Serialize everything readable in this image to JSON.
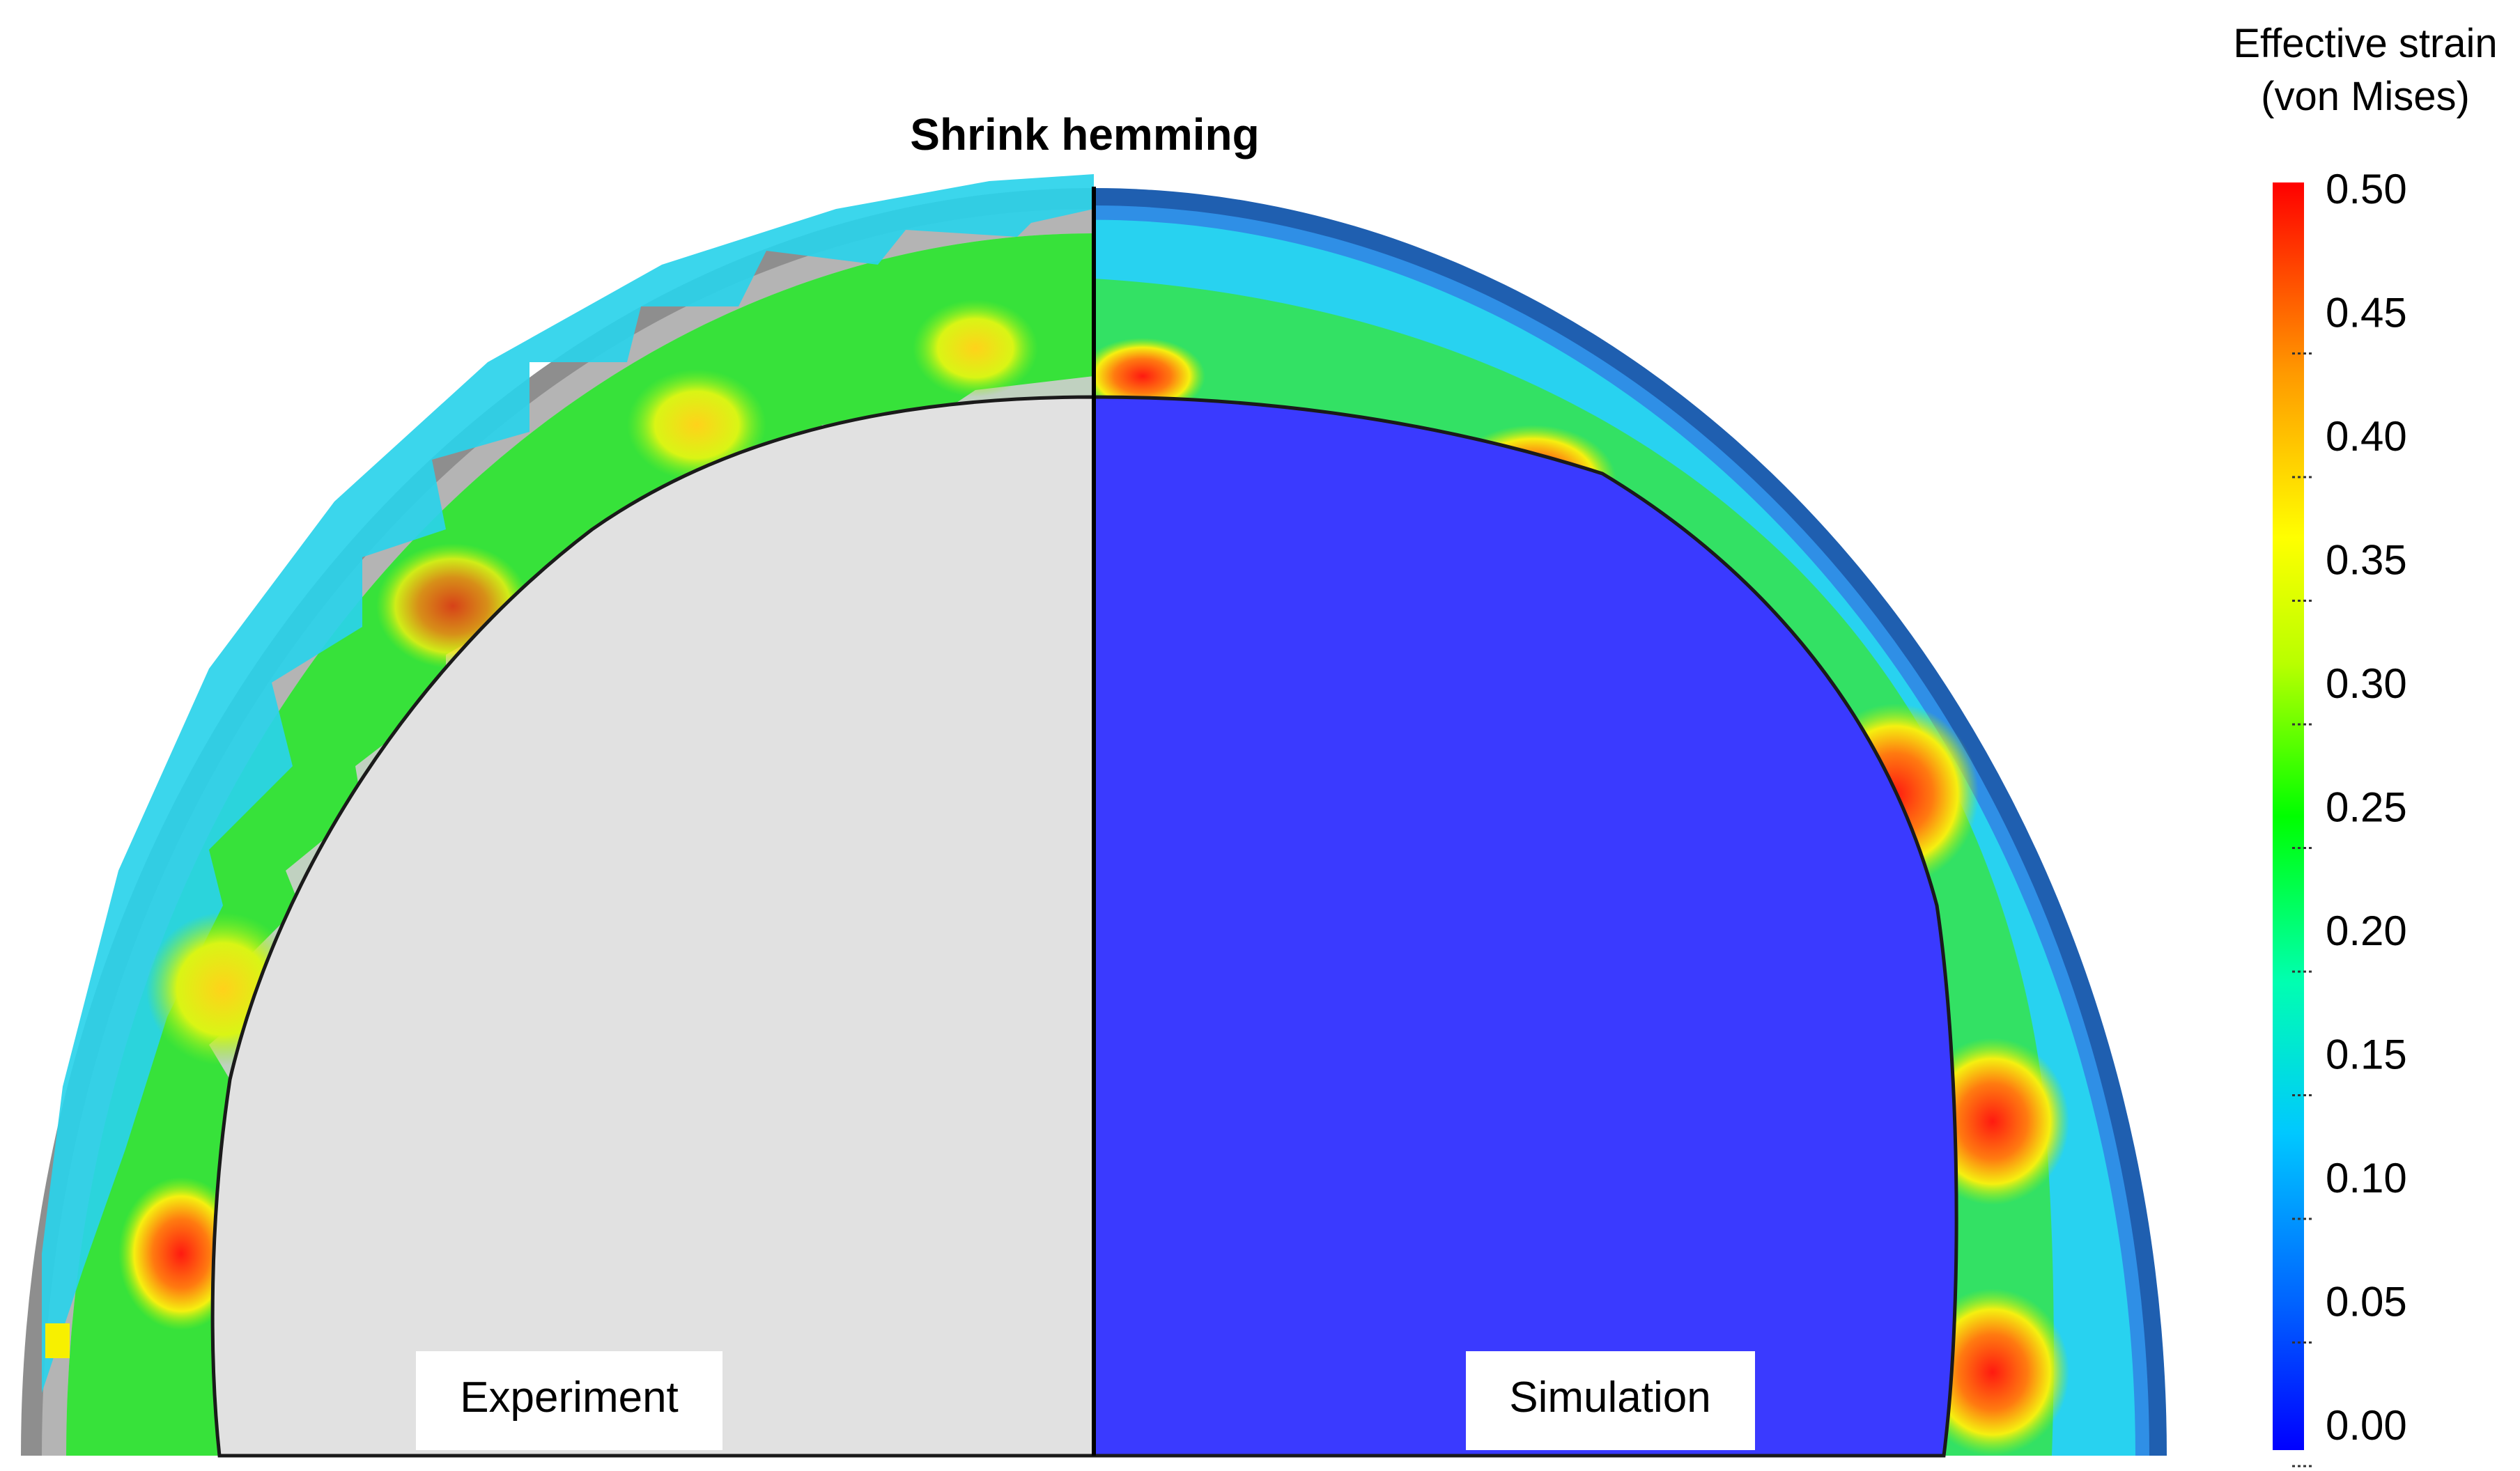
{
  "figure": {
    "title": "Shrink hemming",
    "panels": [
      {
        "label": "Experiment"
      },
      {
        "label": "Simulation"
      }
    ]
  },
  "colorbar": {
    "title_line1": "Effective strain",
    "title_line2": "(von Mises)",
    "min": 0.0,
    "max": 0.5,
    "ticks": [
      "0.50",
      "0.45",
      "0.40",
      "0.35",
      "0.30",
      "0.25",
      "0.20",
      "0.15",
      "0.10",
      "0.05",
      "0.00"
    ],
    "colors": [
      "#0000ff",
      "#0066ff",
      "#00c8ff",
      "#00ffb0",
      "#00ff00",
      "#b8ff00",
      "#ffff00",
      "#ff9900",
      "#ff0000"
    ]
  },
  "colors": {
    "experiment_core": "#e1e1e1",
    "simulation_core": "#3a3aff",
    "flange_green": "#33e633",
    "flange_cyan": "#22d8ee",
    "hot_red": "#ff2a1a"
  }
}
